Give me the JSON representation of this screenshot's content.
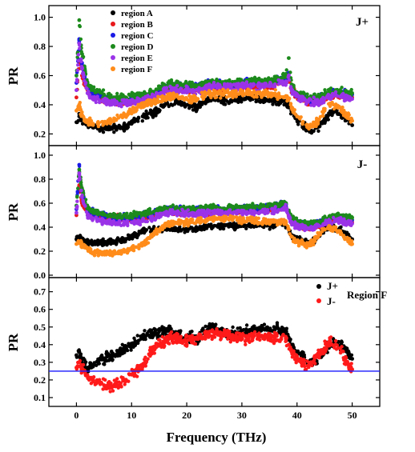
{
  "figure": {
    "xlabel": "Frequency (THz)",
    "ylabel": "PR"
  },
  "colors": {
    "region A": "#000000",
    "region B": "#e8191c",
    "region C": "#1a1ae6",
    "region D": "#1c8a1c",
    "region E": "#9a33e8",
    "region F": "#ff8c1a",
    "J+": "#000000",
    "J-": "#ff1a1a",
    "reference_line": "#1a1aff"
  },
  "chart_data": [
    {
      "type": "scatter",
      "panel_label": "J+",
      "xlim": [
        -5,
        55
      ],
      "ylim": [
        0.12,
        1.08
      ],
      "x_ticks": [],
      "y_ticks": [
        0.2,
        0.4,
        0.6,
        0.8,
        1.0
      ],
      "y_tick_labels": [
        "0.2",
        "0.4",
        "0.6",
        "0.8",
        "1.0"
      ],
      "legend": {
        "position": "top-left",
        "entries": [
          "region A",
          "region B",
          "region C",
          "region D",
          "region E",
          "region F"
        ]
      },
      "x": [
        0,
        0.5,
        1,
        2,
        3,
        5,
        7,
        9,
        10,
        12,
        14,
        16,
        18,
        20,
        22,
        24,
        26,
        28,
        30,
        32,
        34,
        36,
        38,
        38.5,
        39,
        40,
        41,
        42,
        43,
        44,
        45,
        46,
        47,
        48,
        49,
        50
      ],
      "series": [
        {
          "name": "region A",
          "values": [
            0.28,
            0.32,
            0.3,
            0.26,
            0.25,
            0.24,
            0.24,
            0.25,
            0.27,
            0.32,
            0.34,
            0.4,
            0.42,
            0.4,
            0.38,
            0.45,
            0.44,
            0.43,
            0.44,
            0.45,
            0.44,
            0.43,
            0.42,
            0.4,
            0.36,
            0.3,
            0.26,
            0.23,
            0.22,
            0.25,
            0.3,
            0.34,
            0.36,
            0.33,
            0.3,
            0.26
          ]
        },
        {
          "name": "region B",
          "values": [
            0.45,
            0.7,
            0.6,
            0.5,
            0.46,
            0.44,
            0.42,
            0.42,
            0.42,
            0.43,
            0.45,
            0.5,
            0.5,
            0.5,
            0.5,
            0.52,
            0.52,
            0.52,
            0.52,
            0.53,
            0.53,
            0.54,
            0.56,
            0.58,
            0.5,
            0.46,
            0.44,
            0.42,
            0.42,
            0.42,
            0.44,
            0.46,
            0.47,
            0.46,
            0.45,
            0.45
          ]
        },
        {
          "name": "region C",
          "values": [
            0.55,
            0.85,
            0.68,
            0.52,
            0.47,
            0.45,
            0.43,
            0.43,
            0.44,
            0.45,
            0.47,
            0.52,
            0.53,
            0.53,
            0.52,
            0.54,
            0.54,
            0.54,
            0.55,
            0.55,
            0.55,
            0.56,
            0.58,
            0.62,
            0.52,
            0.47,
            0.46,
            0.44,
            0.44,
            0.44,
            0.46,
            0.48,
            0.49,
            0.48,
            0.47,
            0.47
          ]
        },
        {
          "name": "region D",
          "values": [
            0.6,
            0.98,
            0.75,
            0.55,
            0.5,
            0.47,
            0.45,
            0.45,
            0.46,
            0.47,
            0.48,
            0.53,
            0.54,
            0.54,
            0.53,
            0.55,
            0.55,
            0.55,
            0.56,
            0.56,
            0.56,
            0.57,
            0.6,
            0.72,
            0.54,
            0.48,
            0.47,
            0.45,
            0.45,
            0.45,
            0.47,
            0.49,
            0.5,
            0.49,
            0.48,
            0.48
          ]
        },
        {
          "name": "region E",
          "values": [
            0.5,
            0.82,
            0.65,
            0.48,
            0.44,
            0.42,
            0.41,
            0.41,
            0.42,
            0.43,
            0.45,
            0.5,
            0.5,
            0.5,
            0.5,
            0.52,
            0.52,
            0.52,
            0.53,
            0.53,
            0.53,
            0.54,
            0.56,
            0.6,
            0.5,
            0.46,
            0.44,
            0.42,
            0.42,
            0.42,
            0.44,
            0.46,
            0.47,
            0.46,
            0.45,
            0.44
          ]
        },
        {
          "name": "region F",
          "values": [
            0.36,
            0.4,
            0.33,
            0.28,
            0.27,
            0.27,
            0.3,
            0.33,
            0.36,
            0.4,
            0.42,
            0.45,
            0.46,
            0.44,
            0.44,
            0.48,
            0.48,
            0.47,
            0.48,
            0.48,
            0.48,
            0.47,
            0.46,
            0.44,
            0.38,
            0.32,
            0.28,
            0.25,
            0.26,
            0.3,
            0.36,
            0.4,
            0.4,
            0.37,
            0.33,
            0.29
          ]
        }
      ]
    },
    {
      "type": "scatter",
      "panel_label": "J-",
      "xlim": [
        -5,
        55
      ],
      "ylim": [
        -0.02,
        1.08
      ],
      "x_ticks": [],
      "y_ticks": [
        0.0,
        0.2,
        0.4,
        0.6,
        0.8,
        1.0
      ],
      "y_tick_labels": [
        "0.0",
        "0.2",
        "0.4",
        "0.6",
        "0.8",
        "1.0"
      ],
      "x": [
        0,
        0.5,
        1,
        2,
        3,
        5,
        7,
        9,
        10,
        12,
        14,
        16,
        18,
        20,
        22,
        24,
        26,
        28,
        30,
        32,
        34,
        36,
        38,
        38.5,
        39,
        40,
        41,
        42,
        43,
        44,
        45,
        46,
        47,
        48,
        49,
        50
      ],
      "series": [
        {
          "name": "region A",
          "values": [
            0.3,
            0.32,
            0.3,
            0.27,
            0.27,
            0.27,
            0.28,
            0.3,
            0.32,
            0.36,
            0.38,
            0.39,
            0.38,
            0.38,
            0.39,
            0.41,
            0.41,
            0.41,
            0.42,
            0.42,
            0.42,
            0.42,
            0.42,
            0.38,
            0.33,
            0.3,
            0.28,
            0.26,
            0.28,
            0.33,
            0.38,
            0.4,
            0.39,
            0.37,
            0.34,
            0.3
          ]
        },
        {
          "name": "region B",
          "values": [
            0.5,
            0.75,
            0.6,
            0.52,
            0.5,
            0.48,
            0.47,
            0.47,
            0.47,
            0.48,
            0.5,
            0.53,
            0.53,
            0.52,
            0.52,
            0.53,
            0.53,
            0.53,
            0.54,
            0.54,
            0.54,
            0.55,
            0.57,
            0.5,
            0.45,
            0.42,
            0.41,
            0.4,
            0.41,
            0.42,
            0.44,
            0.46,
            0.47,
            0.46,
            0.45,
            0.44
          ]
        },
        {
          "name": "region C",
          "values": [
            0.55,
            0.92,
            0.7,
            0.55,
            0.52,
            0.5,
            0.48,
            0.48,
            0.48,
            0.5,
            0.52,
            0.55,
            0.55,
            0.54,
            0.54,
            0.55,
            0.55,
            0.55,
            0.56,
            0.56,
            0.56,
            0.57,
            0.59,
            0.52,
            0.47,
            0.44,
            0.43,
            0.42,
            0.43,
            0.44,
            0.46,
            0.48,
            0.49,
            0.48,
            0.47,
            0.46
          ]
        },
        {
          "name": "region D",
          "values": [
            0.58,
            0.88,
            0.72,
            0.56,
            0.53,
            0.51,
            0.49,
            0.49,
            0.5,
            0.51,
            0.53,
            0.56,
            0.56,
            0.55,
            0.55,
            0.56,
            0.56,
            0.56,
            0.57,
            0.57,
            0.57,
            0.58,
            0.6,
            0.54,
            0.48,
            0.45,
            0.44,
            0.43,
            0.44,
            0.45,
            0.47,
            0.49,
            0.5,
            0.49,
            0.48,
            0.48
          ]
        },
        {
          "name": "region E",
          "values": [
            0.52,
            0.85,
            0.65,
            0.5,
            0.47,
            0.45,
            0.43,
            0.43,
            0.44,
            0.45,
            0.47,
            0.52,
            0.52,
            0.51,
            0.51,
            0.52,
            0.52,
            0.52,
            0.53,
            0.53,
            0.53,
            0.54,
            0.56,
            0.49,
            0.44,
            0.41,
            0.4,
            0.39,
            0.4,
            0.41,
            0.43,
            0.45,
            0.46,
            0.45,
            0.44,
            0.43
          ]
        },
        {
          "name": "region F",
          "values": [
            0.26,
            0.28,
            0.25,
            0.22,
            0.19,
            0.18,
            0.18,
            0.2,
            0.22,
            0.26,
            0.34,
            0.42,
            0.44,
            0.44,
            0.45,
            0.47,
            0.47,
            0.47,
            0.46,
            0.46,
            0.45,
            0.45,
            0.44,
            0.38,
            0.32,
            0.28,
            0.26,
            0.25,
            0.28,
            0.34,
            0.38,
            0.4,
            0.38,
            0.35,
            0.3,
            0.26
          ]
        }
      ]
    },
    {
      "type": "scatter",
      "panel_label": "Region F",
      "xlabel": "Frequency (THz)",
      "xlim": [
        -5,
        55
      ],
      "ylim": [
        0.05,
        0.78
      ],
      "x_ticks": [
        0,
        10,
        20,
        30,
        40,
        50
      ],
      "x_tick_labels": [
        "0",
        "10",
        "20",
        "30",
        "40",
        "50"
      ],
      "y_ticks": [
        0.1,
        0.2,
        0.3,
        0.4,
        0.5,
        0.6,
        0.7
      ],
      "y_tick_labels": [
        "0.1",
        "0.2",
        "0.3",
        "0.4",
        "0.5",
        "0.6",
        "0.7"
      ],
      "reference_line_y": 0.25,
      "legend": {
        "position": "top-right",
        "entries": [
          "J+",
          "J-"
        ]
      },
      "x": [
        0,
        0.5,
        1,
        2,
        3,
        5,
        7,
        9,
        10,
        12,
        14,
        16,
        18,
        20,
        22,
        24,
        26,
        28,
        30,
        32,
        34,
        36,
        38,
        38.5,
        39,
        40,
        41,
        42,
        43,
        44,
        45,
        46,
        47,
        48,
        49,
        50
      ],
      "series": [
        {
          "name": "J+",
          "values": [
            0.34,
            0.36,
            0.3,
            0.27,
            0.28,
            0.32,
            0.34,
            0.38,
            0.4,
            0.44,
            0.46,
            0.48,
            0.46,
            0.44,
            0.44,
            0.5,
            0.48,
            0.46,
            0.47,
            0.48,
            0.49,
            0.49,
            0.48,
            0.44,
            0.4,
            0.36,
            0.34,
            0.3,
            0.3,
            0.33,
            0.37,
            0.4,
            0.42,
            0.4,
            0.36,
            0.32
          ]
        },
        {
          "name": "J-",
          "values": [
            0.27,
            0.3,
            0.26,
            0.22,
            0.19,
            0.17,
            0.17,
            0.2,
            0.23,
            0.28,
            0.38,
            0.42,
            0.44,
            0.42,
            0.44,
            0.46,
            0.46,
            0.45,
            0.44,
            0.44,
            0.44,
            0.44,
            0.43,
            0.4,
            0.36,
            0.32,
            0.3,
            0.28,
            0.3,
            0.35,
            0.38,
            0.42,
            0.4,
            0.36,
            0.3,
            0.26
          ]
        }
      ]
    }
  ]
}
